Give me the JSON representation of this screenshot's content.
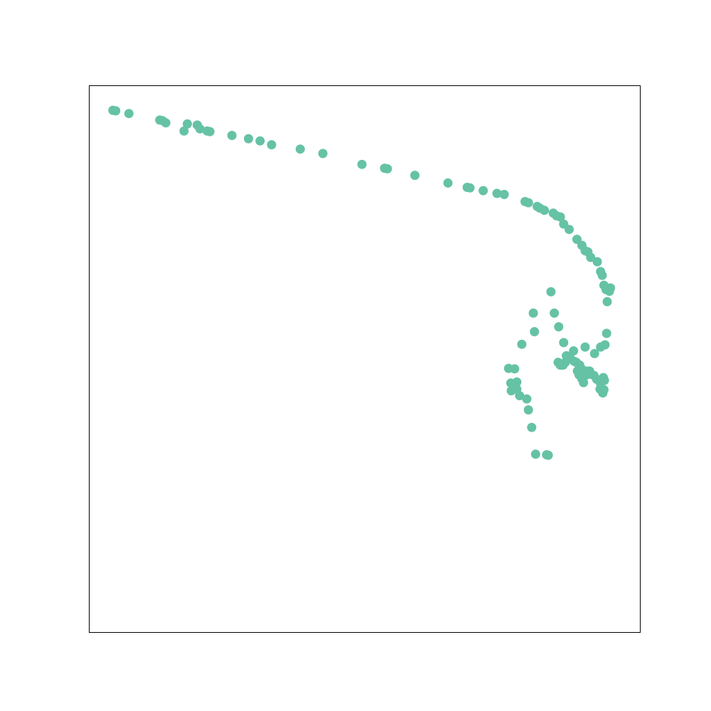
{
  "chart_data": {
    "type": "scatter",
    "title": "",
    "xlabel": "",
    "ylabel": "",
    "axes_visible": false,
    "grid": false,
    "legend": "none",
    "xlim": [
      0,
      100
    ],
    "ylim": [
      0,
      100
    ],
    "marker_color": "#66c2a5",
    "series": [
      {
        "x": [
          4.3,
          4.8,
          7.2,
          12.8,
          13.3,
          13.9,
          17.2,
          17.8,
          19.6,
          20.1,
          21.4,
          21.9,
          25.9,
          28.9,
          31.0,
          33.1,
          38.3,
          42.4,
          49.5,
          53.6,
          54.1,
          59.1,
          65.1,
          68.6,
          69.1,
          71.5,
          74.0,
          75.3,
          79.1,
          79.7,
          81.3,
          81.8,
          82.6,
          84.2,
          84.8,
          85.5,
          86.1,
          87.1,
          88.5,
          89.4,
          90.0,
          90.5,
          91.0,
          92.2,
          92.8,
          93.1,
          93.4,
          93.8,
          94.6,
          94.4,
          94.0,
          93.9,
          93.6,
          92.8,
          91.7,
          90.2,
          88.9,
          88.6,
          90.0,
          90.8,
          91.6,
          90.6,
          89.9,
          89.5,
          89.0,
          88.9,
          88.4,
          88.0,
          87.2,
          86.6,
          86.4,
          86.0,
          85.5,
          85.1,
          83.3,
          83.0,
          81.0,
          80.3,
          79.7,
          79.4,
          78.1,
          77.6,
          77.0,
          76.1,
          77.6,
          76.6,
          76.5,
          77.2,
          78.5,
          80.8,
          80.6,
          83.8,
          84.4,
          85.2,
          86.1,
          87.9,
          89.2,
          89.4,
          89.7,
          92.1,
          93.2,
          92.7,
          93.4,
          92.8,
          93.3,
          93.5
        ],
        "y": [
          95.5,
          95.4,
          94.9,
          93.7,
          93.6,
          93.2,
          91.7,
          93.0,
          92.8,
          92.1,
          91.7,
          91.6,
          90.9,
          90.3,
          89.9,
          89.2,
          88.4,
          87.6,
          85.6,
          84.9,
          84.8,
          83.6,
          82.2,
          81.4,
          81.3,
          80.8,
          80.3,
          80.1,
          78.8,
          78.6,
          77.9,
          77.6,
          77.2,
          76.7,
          76.2,
          76.0,
          74.7,
          73.7,
          71.9,
          70.8,
          69.8,
          69.6,
          68.6,
          67.8,
          66.0,
          65.3,
          63.5,
          62.7,
          63.0,
          62.4,
          60.5,
          54.7,
          52.6,
          52.2,
          51.0,
          47.8,
          47.1,
          47.8,
          52.2,
          47.8,
          47.0,
          47.2,
          46.9,
          47.1,
          48.9,
          48.9,
          49.4,
          49.6,
          50.5,
          50.6,
          49.4,
          48.9,
          48.9,
          49.4,
          32.4,
          32.5,
          32.6,
          37.5,
          40.7,
          42.7,
          43.3,
          44.5,
          45.2,
          48.3,
          45.8,
          44.2,
          45.6,
          48.2,
          52.7,
          55.0,
          58.4,
          62.3,
          58.4,
          55.9,
          53.0,
          51.5,
          48.4,
          46.4,
          45.7,
          46.3,
          43.8,
          44.5,
          44.4,
          45.5,
          46.6,
          46.1
        ]
      }
    ]
  }
}
